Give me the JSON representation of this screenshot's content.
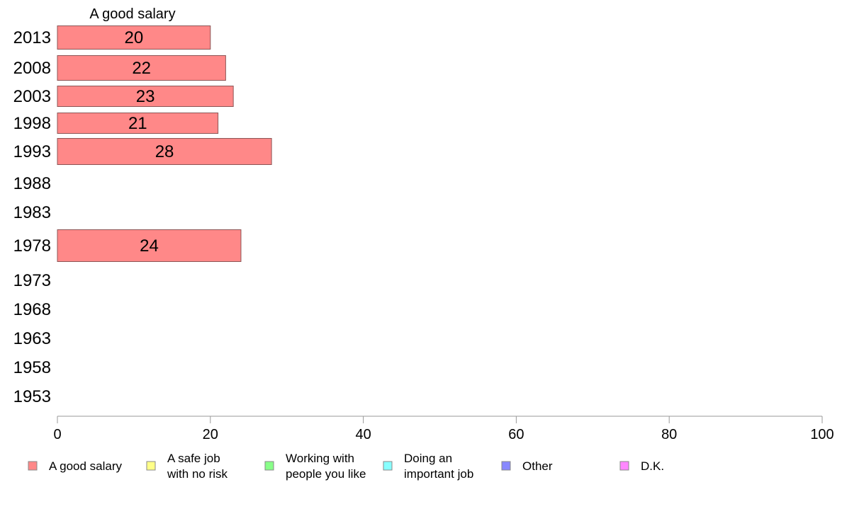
{
  "chart_data": {
    "type": "bar",
    "orientation": "horizontal",
    "title": "A good salary",
    "categories": [
      "2013",
      "2008",
      "2003",
      "1998",
      "1993",
      "1988",
      "1983",
      "1978",
      "1973",
      "1968",
      "1963",
      "1958",
      "1953"
    ],
    "series": [
      {
        "name": "A good salary",
        "color": "#ff8888",
        "values": [
          20,
          22,
          23,
          21,
          28,
          null,
          null,
          24,
          null,
          null,
          null,
          null,
          null
        ]
      }
    ],
    "xlim": [
      0,
      100
    ],
    "xticks": [
      "0",
      "20",
      "40",
      "60",
      "80",
      "100"
    ],
    "grid": false,
    "legend_position": "bottom",
    "legend": [
      {
        "label": [
          "A good salary"
        ],
        "color": "#ff8888"
      },
      {
        "label": [
          "A safe job",
          "with no risk"
        ],
        "color": "#ffff88"
      },
      {
        "label": [
          "Working with",
          "people you like"
        ],
        "color": "#88ff88"
      },
      {
        "label": [
          "Doing an",
          "important job"
        ],
        "color": "#88ffff"
      },
      {
        "label": [
          "Other"
        ],
        "color": "#8888ff"
      },
      {
        "label": [
          "D.K."
        ],
        "color": "#ff88ff"
      }
    ]
  }
}
